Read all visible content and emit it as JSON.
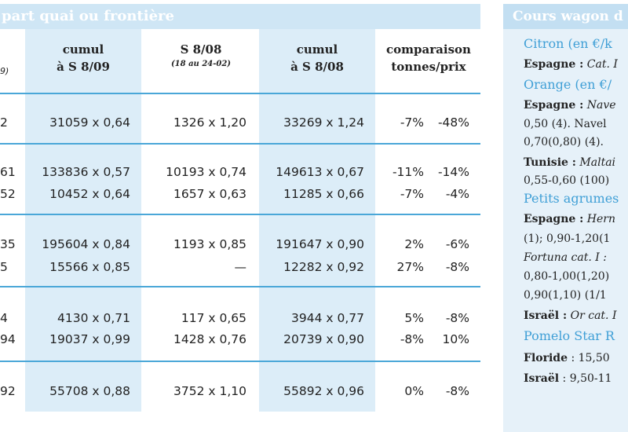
{
  "left_panel": {
    "title": "part quai ou frontière",
    "headers": {
      "cumul_0809": [
        "cumul",
        "à S 8/09"
      ],
      "s808": [
        "S 8/08",
        "(18 au 24-02)"
      ],
      "cumul_0808": [
        "cumul",
        "à S 8/08"
      ],
      "comparaison": [
        "comparaison",
        "tonnes/prix"
      ],
      "partial_first": "9)"
    },
    "rows": [
      {
        "lead": "2",
        "c1": "31059 x 0,64",
        "c2": "1326 x 1,20",
        "c3": "33269 x 1,24",
        "c4a": "-7%",
        "c4b": "-48%"
      },
      {
        "lead": "61",
        "c1": "133836 x 0,57",
        "c2": "10193 x 0,74",
        "c3": "149613 x 0,67",
        "c4a": "-11%",
        "c4b": "-14%"
      },
      {
        "lead": "52",
        "c1": "10452 x 0,64",
        "c2": "1657 x 0,63",
        "c3": "11285 x 0,66",
        "c4a": "-7%",
        "c4b": "-4%"
      },
      {
        "lead": "35",
        "c1": "195604 x 0,84",
        "c2": "1193 x 0,85",
        "c3": "191647 x 0,90",
        "c4a": "2%",
        "c4b": "-6%"
      },
      {
        "lead": "5",
        "c1": "15566 x 0,85",
        "c2": "—",
        "c3": "12282 x 0,92",
        "c4a": "27%",
        "c4b": "-8%"
      },
      {
        "lead": "4",
        "c1": "4130 x 0,71",
        "c2": "117 x 0,65",
        "c3": "3944 x 0,77",
        "c4a": "5%",
        "c4b": "-8%"
      },
      {
        "lead": "94",
        "c1": "19037 x 0,99",
        "c2": "1428 x 0,76",
        "c3": "20739 x 0,90",
        "c4a": "-8%",
        "c4b": "10%"
      },
      {
        "lead": "92",
        "c1": "55708 x 0,88",
        "c2": "3752 x 1,10",
        "c3": "55892 x 0,96",
        "c4a": "0%",
        "c4b": "-8%"
      }
    ]
  },
  "right_panel": {
    "title": "Cours wagon d",
    "lines": [
      {
        "text": "Citron (en €/k",
        "style": "blue"
      },
      {
        "bold": "Espagne :",
        "ital": " Cat. I"
      },
      {
        "text": "Orange (en €/",
        "style": "blue"
      },
      {
        "bold": "Espagne :",
        "ital": " Nave"
      },
      {
        "text": "0,50 (4). Navel",
        "style": "plain"
      },
      {
        "text": "0,70(0,80) (4).",
        "style": "plain"
      },
      {
        "bold": "Tunisie :",
        "text": " Maltai"
      },
      {
        "text": "0,55-0,60 (100)",
        "style": "plain"
      },
      {
        "text": "Petits agrumes",
        "style": "blue"
      },
      {
        "bold": "Espagne :",
        "ital": " Hern"
      },
      {
        "text": "(1); 0,90-1,20(1",
        "style": "plain"
      },
      {
        "text": "Fortuna cat. I :",
        "style": "ital"
      },
      {
        "text": "0,80-1,00(1,20)",
        "style": "plain"
      },
      {
        "text": "0,90(1,10) (1/1",
        "style": "plain"
      },
      {
        "bold": "Israël :",
        "ital": " Or cat. I"
      },
      {
        "text": "Pomelo Star R",
        "style": "blue"
      },
      {
        "bold": "Floride",
        "text": " : 15,50"
      },
      {
        "bold": "Israël",
        "text": " : 9,50-11"
      }
    ]
  }
}
